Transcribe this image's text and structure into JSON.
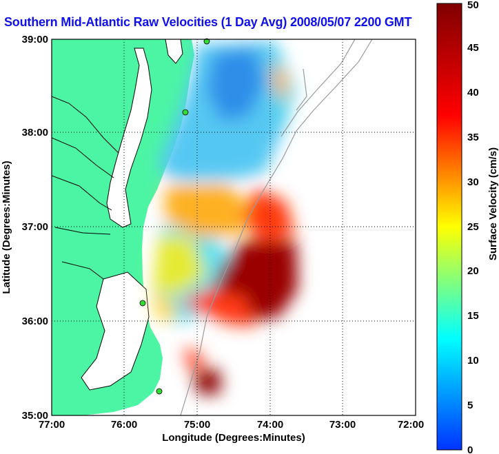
{
  "title": "Southern Mid-Atlantic Raw Velocities (1 Day Avg) 2008/05/07 2200 GMT",
  "axes": {
    "xlabel": "Longitude (Degrees:Minutes)",
    "ylabel": "Latitude (Degrees:Minutes)",
    "xticks": [
      "77:00",
      "76:00",
      "75:00",
      "74:00",
      "73:00",
      "72:00"
    ],
    "yticks": [
      "39:00",
      "38:00",
      "37:00",
      "36:00",
      "35:00"
    ],
    "xlim": [
      -77,
      -72
    ],
    "ylim": [
      35,
      39
    ]
  },
  "colorbar": {
    "label": "Surface Velocity (cm/s)",
    "ticks": [
      "0",
      "5",
      "10",
      "15",
      "20",
      "25",
      "30",
      "35",
      "40",
      "45",
      "50"
    ],
    "range": [
      0,
      50
    ],
    "colors": [
      "#0033ff",
      "#00ffff",
      "#ffff00",
      "#ff0000",
      "#800000"
    ]
  },
  "colors": {
    "land": "#4cf5a4",
    "title": "#1010ee",
    "stations": "#33dd33"
  }
}
